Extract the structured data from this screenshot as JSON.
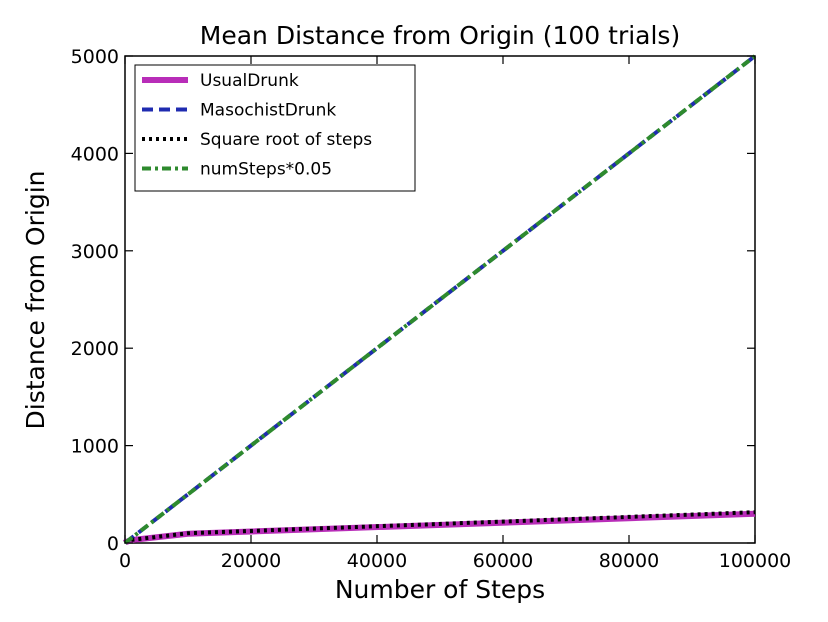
{
  "chart_data": {
    "type": "line",
    "title": "Mean Distance from Origin (100 trials)",
    "xlabel": "Number of Steps",
    "ylabel": "Distance from Origin",
    "xlim": [
      0,
      100000
    ],
    "ylim": [
      0,
      5000
    ],
    "x_ticks": [
      0,
      20000,
      40000,
      60000,
      80000,
      100000
    ],
    "y_ticks": [
      0,
      1000,
      2000,
      3000,
      4000,
      5000
    ],
    "grid": false,
    "legend_position": "top-left",
    "x": [
      10,
      100,
      1000,
      10000,
      100000
    ],
    "series": [
      {
        "name": "UsualDrunk",
        "color": "#b82db8",
        "style": "solid",
        "values": [
          3,
          9,
          30,
          95,
          300
        ]
      },
      {
        "name": "MasochistDrunk",
        "color": "#1f2bb0",
        "style": "dashed",
        "values": [
          1,
          5,
          50,
          500,
          5000
        ]
      },
      {
        "name": "Square root of steps",
        "color": "#000000",
        "style": "dotted",
        "values": [
          3.16,
          10,
          31.6,
          100,
          316.2
        ]
      },
      {
        "name": "numSteps*0.05",
        "color": "#2e8a2e",
        "style": "dashdot",
        "values": [
          0.5,
          5,
          50,
          500,
          5000
        ]
      }
    ]
  }
}
